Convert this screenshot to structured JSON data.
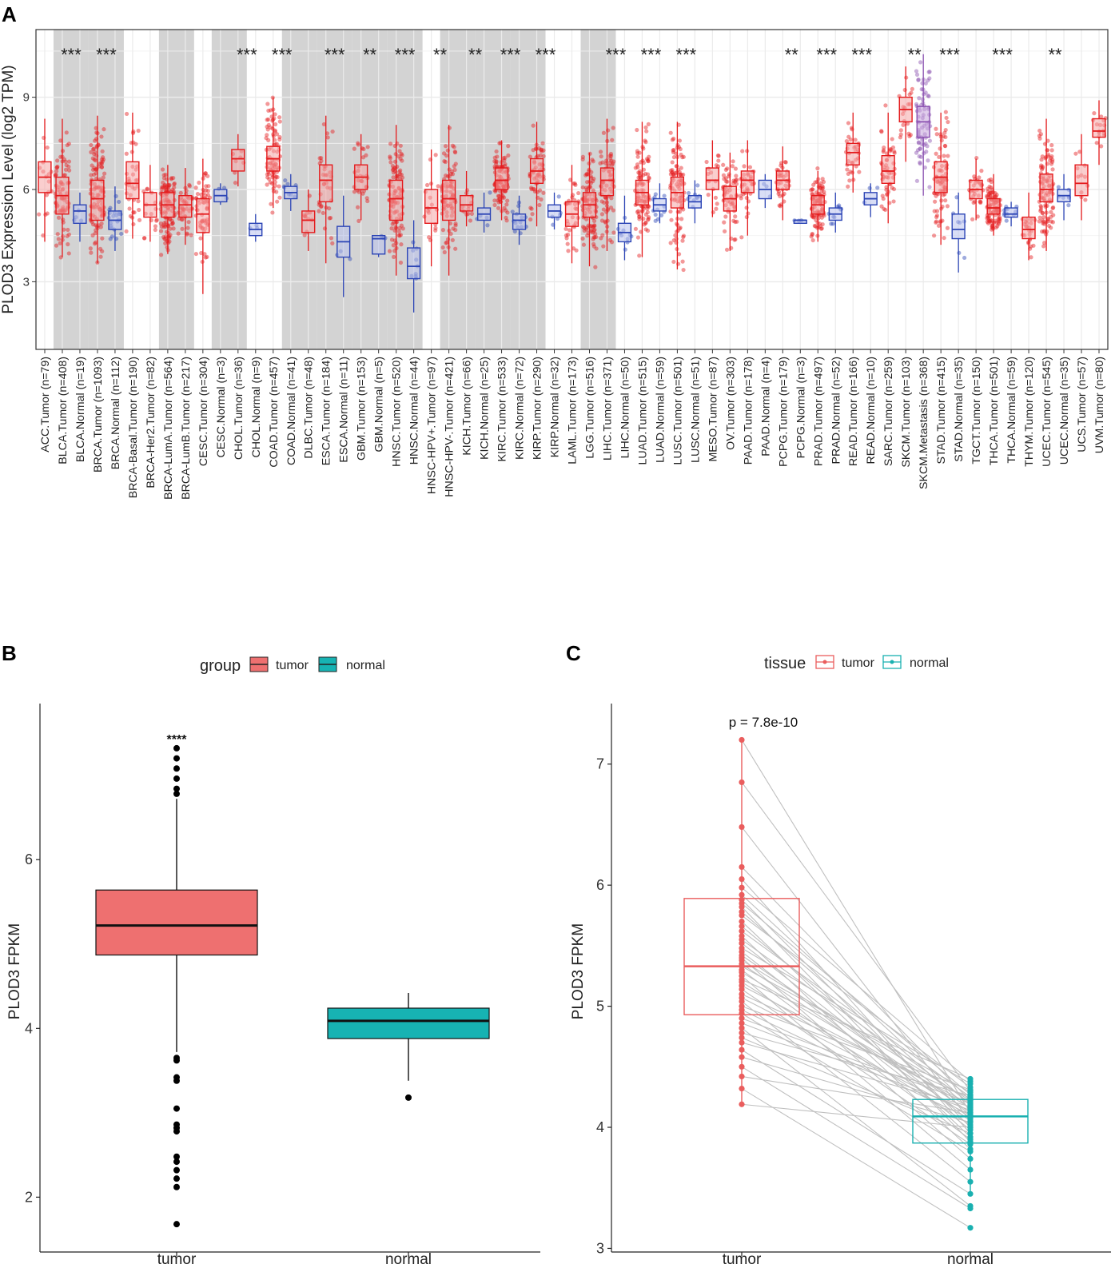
{
  "colors": {
    "tumor_red": "#e41a1c",
    "normal_blue": "#2b44b5",
    "grey_band": "#d3d3d3",
    "b_tumor": "#ee7070",
    "b_normal": "#17b3b3",
    "c_tumor": "#ea5d5d",
    "c_normal": "#19b0b0",
    "pair_line": "#c0c0c0"
  },
  "chart_data": [
    {
      "panel": "A",
      "type": "box",
      "ylabel": "PLOD3 Expression Level (log2 TPM)",
      "yticks": [
        3,
        6,
        9
      ],
      "ylim": [
        0.8,
        11.2
      ],
      "shaded_pairs": [
        1,
        3,
        7,
        10,
        14,
        16,
        18,
        20,
        23,
        25,
        27,
        31
      ],
      "categories": [
        {
          "label": "ACC.Tumor (n=79)",
          "g": "t",
          "q1": 5.9,
          "med": 6.4,
          "q3": 6.9,
          "lo": 4.3,
          "hi": 8.3
        },
        {
          "label": "BLCA.Tumor (n=408)",
          "g": "t",
          "q1": 5.2,
          "med": 5.8,
          "q3": 6.4,
          "lo": 3.8,
          "hi": 8.3
        },
        {
          "label": "BLCA.Normal (n=19)",
          "g": "n",
          "q1": 4.9,
          "med": 5.3,
          "q3": 5.5,
          "lo": 4.3,
          "hi": 5.9
        },
        {
          "label": "BRCA.Tumor (n=1093)",
          "g": "t",
          "q1": 5.0,
          "med": 5.7,
          "q3": 6.3,
          "lo": 3.6,
          "hi": 8.4
        },
        {
          "label": "BRCA.Normal (n=112)",
          "g": "n",
          "q1": 4.7,
          "med": 5.0,
          "q3": 5.3,
          "lo": 4.0,
          "hi": 6.1
        },
        {
          "label": "BRCA-Basal.Tumor (n=190)",
          "g": "t",
          "q1": 5.7,
          "med": 6.2,
          "q3": 6.9,
          "lo": 4.4,
          "hi": 8.5
        },
        {
          "label": "BRCA-Her2.Tumor (n=82)",
          "g": "t",
          "q1": 5.1,
          "med": 5.5,
          "q3": 5.9,
          "lo": 4.3,
          "hi": 6.8
        },
        {
          "label": "BRCA-LumA.Tumor (n=564)",
          "g": "t",
          "q1": 5.1,
          "med": 5.5,
          "q3": 5.9,
          "lo": 3.9,
          "hi": 6.8
        },
        {
          "label": "BRCA-LumB.Tumor (n=217)",
          "g": "t",
          "q1": 5.1,
          "med": 5.5,
          "q3": 5.8,
          "lo": 4.2,
          "hi": 6.7
        },
        {
          "label": "CESC.Tumor (n=304)",
          "g": "t",
          "q1": 4.6,
          "med": 5.2,
          "q3": 5.7,
          "lo": 2.6,
          "hi": 7.0
        },
        {
          "label": "CESC.Normal (n=3)",
          "g": "n",
          "q1": 5.6,
          "med": 5.8,
          "q3": 6.0,
          "lo": 5.5,
          "hi": 6.2
        },
        {
          "label": "CHOL.Tumor (n=36)",
          "g": "t",
          "q1": 6.6,
          "med": 7.0,
          "q3": 7.3,
          "lo": 6.1,
          "hi": 7.8
        },
        {
          "label": "CHOL.Normal (n=9)",
          "g": "n",
          "q1": 4.5,
          "med": 4.7,
          "q3": 4.9,
          "lo": 4.3,
          "hi": 5.2
        },
        {
          "label": "COAD.Tumor (n=457)",
          "g": "t",
          "q1": 6.6,
          "med": 7.0,
          "q3": 7.4,
          "lo": 5.4,
          "hi": 9.0
        },
        {
          "label": "COAD.Normal (n=41)",
          "g": "n",
          "q1": 5.7,
          "med": 5.9,
          "q3": 6.1,
          "lo": 5.3,
          "hi": 6.5
        },
        {
          "label": "DLBC.Tumor (n=48)",
          "g": "t",
          "q1": 4.6,
          "med": 5.0,
          "q3": 5.3,
          "lo": 4.0,
          "hi": 6.0
        },
        {
          "label": "ESCA.Tumor (n=184)",
          "g": "t",
          "q1": 5.6,
          "med": 6.3,
          "q3": 6.8,
          "lo": 3.6,
          "hi": 8.4
        },
        {
          "label": "ESCA.Normal (n=11)",
          "g": "n",
          "q1": 3.8,
          "med": 4.3,
          "q3": 4.8,
          "lo": 2.5,
          "hi": 5.8
        },
        {
          "label": "GBM.Tumor (n=153)",
          "g": "t",
          "q1": 6.0,
          "med": 6.4,
          "q3": 6.8,
          "lo": 5.0,
          "hi": 7.8
        },
        {
          "label": "GBM.Normal (n=5)",
          "g": "n",
          "q1": 3.9,
          "med": 4.4,
          "q3": 4.5,
          "lo": 3.8,
          "hi": 4.5
        },
        {
          "label": "HNSC.Tumor (n=520)",
          "g": "t",
          "q1": 5.0,
          "med": 5.7,
          "q3": 6.3,
          "lo": 3.2,
          "hi": 8.1
        },
        {
          "label": "HNSC.Normal (n=44)",
          "g": "n",
          "q1": 3.1,
          "med": 3.5,
          "q3": 4.1,
          "lo": 2.0,
          "hi": 5.0
        },
        {
          "label": "HNSC-HPV+.Tumor (n=97)",
          "g": "t",
          "q1": 4.9,
          "med": 5.4,
          "q3": 6.0,
          "lo": 3.5,
          "hi": 7.3
        },
        {
          "label": "HNSC-HPV-.Tumor (n=421)",
          "g": "t",
          "q1": 5.0,
          "med": 5.7,
          "q3": 6.3,
          "lo": 3.2,
          "hi": 8.1
        },
        {
          "label": "KICH.Tumor (n=66)",
          "g": "t",
          "q1": 5.3,
          "med": 5.5,
          "q3": 5.8,
          "lo": 4.8,
          "hi": 6.6
        },
        {
          "label": "KICH.Normal (n=25)",
          "g": "n",
          "q1": 5.0,
          "med": 5.2,
          "q3": 5.4,
          "lo": 4.6,
          "hi": 5.9
        },
        {
          "label": "KIRC.Tumor (n=533)",
          "g": "t",
          "q1": 6.0,
          "med": 6.3,
          "q3": 6.7,
          "lo": 5.0,
          "hi": 7.6
        },
        {
          "label": "KIRC.Normal (n=72)",
          "g": "n",
          "q1": 4.7,
          "med": 5.0,
          "q3": 5.2,
          "lo": 4.2,
          "hi": 5.8
        },
        {
          "label": "KIRP.Tumor (n=290)",
          "g": "t",
          "q1": 6.2,
          "med": 6.6,
          "q3": 7.0,
          "lo": 4.8,
          "hi": 8.2
        },
        {
          "label": "KIRP.Normal (n=32)",
          "g": "n",
          "q1": 5.1,
          "med": 5.3,
          "q3": 5.5,
          "lo": 4.7,
          "hi": 5.9
        },
        {
          "label": "LAML.Tumor (n=173)",
          "g": "t",
          "q1": 4.8,
          "med": 5.2,
          "q3": 5.6,
          "lo": 3.6,
          "hi": 6.8
        },
        {
          "label": "LGG.Tumor (n=516)",
          "g": "t",
          "q1": 5.1,
          "med": 5.5,
          "q3": 5.9,
          "lo": 3.5,
          "hi": 7.2
        },
        {
          "label": "LIHC.Tumor (n=371)",
          "g": "t",
          "q1": 5.8,
          "med": 6.3,
          "q3": 6.7,
          "lo": 4.0,
          "hi": 8.3
        },
        {
          "label": "LIHC.Normal (n=50)",
          "g": "n",
          "q1": 4.3,
          "med": 4.6,
          "q3": 4.9,
          "lo": 3.7,
          "hi": 5.8
        },
        {
          "label": "LUAD.Tumor (n=515)",
          "g": "t",
          "q1": 5.5,
          "med": 5.9,
          "q3": 6.3,
          "lo": 3.8,
          "hi": 8.2
        },
        {
          "label": "LUAD.Normal (n=59)",
          "g": "n",
          "q1": 5.3,
          "med": 5.5,
          "q3": 5.7,
          "lo": 4.9,
          "hi": 6.2
        },
        {
          "label": "LUSC.Tumor (n=501)",
          "g": "t",
          "q1": 5.4,
          "med": 5.9,
          "q3": 6.4,
          "lo": 3.4,
          "hi": 8.2
        },
        {
          "label": "LUSC.Normal (n=51)",
          "g": "n",
          "q1": 5.4,
          "med": 5.6,
          "q3": 5.8,
          "lo": 4.9,
          "hi": 6.3
        },
        {
          "label": "MESO.Tumor (n=87)",
          "g": "t",
          "q1": 6.0,
          "med": 6.3,
          "q3": 6.7,
          "lo": 5.1,
          "hi": 7.6
        },
        {
          "label": "OV.Tumor (n=303)",
          "g": "t",
          "q1": 5.3,
          "med": 5.7,
          "q3": 6.1,
          "lo": 4.0,
          "hi": 7.2
        },
        {
          "label": "PAAD.Tumor (n=178)",
          "g": "t",
          "q1": 5.9,
          "med": 6.3,
          "q3": 6.6,
          "lo": 4.5,
          "hi": 7.6
        },
        {
          "label": "PAAD.Normal (n=4)",
          "g": "n",
          "q1": 5.7,
          "med": 6.0,
          "q3": 6.3,
          "lo": 5.4,
          "hi": 6.5
        },
        {
          "label": "PCPG.Tumor (n=179)",
          "g": "t",
          "q1": 6.0,
          "med": 6.3,
          "q3": 6.6,
          "lo": 5.0,
          "hi": 7.4
        },
        {
          "label": "PCPG.Normal (n=3)",
          "g": "n",
          "q1": 4.9,
          "med": 5.0,
          "q3": 5.0,
          "lo": 4.9,
          "hi": 5.0
        },
        {
          "label": "PRAD.Tumor (n=497)",
          "g": "t",
          "q1": 5.2,
          "med": 5.5,
          "q3": 5.8,
          "lo": 4.3,
          "hi": 6.6
        },
        {
          "label": "PRAD.Normal (n=52)",
          "g": "n",
          "q1": 5.0,
          "med": 5.2,
          "q3": 5.4,
          "lo": 4.6,
          "hi": 5.9
        },
        {
          "label": "READ.Tumor (n=166)",
          "g": "t",
          "q1": 6.8,
          "med": 7.2,
          "q3": 7.5,
          "lo": 5.9,
          "hi": 8.5
        },
        {
          "label": "READ.Normal (n=10)",
          "g": "n",
          "q1": 5.5,
          "med": 5.7,
          "q3": 5.9,
          "lo": 5.1,
          "hi": 6.2
        },
        {
          "label": "SARC.Tumor (n=259)",
          "g": "t",
          "q1": 6.2,
          "med": 6.6,
          "q3": 7.1,
          "lo": 4.9,
          "hi": 8.5
        },
        {
          "label": "SKCM.Tumor (n=103)",
          "g": "t",
          "q1": 8.2,
          "med": 8.6,
          "q3": 9.0,
          "lo": 6.9,
          "hi": 10.0
        },
        {
          "label": "SKCM.Metastasis (n=368)",
          "g": "m",
          "q1": 7.7,
          "med": 8.2,
          "q3": 8.7,
          "lo": 5.8,
          "hi": 10.4
        },
        {
          "label": "STAD.Tumor (n=415)",
          "g": "t",
          "q1": 5.9,
          "med": 6.4,
          "q3": 6.9,
          "lo": 4.2,
          "hi": 8.5
        },
        {
          "label": "STAD.Normal (n=35)",
          "g": "n",
          "q1": 4.4,
          "med": 4.7,
          "q3": 5.2,
          "lo": 3.3,
          "hi": 5.9
        },
        {
          "label": "TGCT.Tumor (n=150)",
          "g": "t",
          "q1": 5.7,
          "med": 6.0,
          "q3": 6.3,
          "lo": 5.0,
          "hi": 7.0
        },
        {
          "label": "THCA.Tumor (n=501)",
          "g": "t",
          "q1": 5.2,
          "med": 5.4,
          "q3": 5.7,
          "lo": 4.5,
          "hi": 6.5
        },
        {
          "label": "THCA.Normal (n=59)",
          "g": "n",
          "q1": 5.1,
          "med": 5.2,
          "q3": 5.4,
          "lo": 4.8,
          "hi": 5.6
        },
        {
          "label": "THYM.Tumor (n=120)",
          "g": "t",
          "q1": 4.4,
          "med": 4.7,
          "q3": 5.1,
          "lo": 3.7,
          "hi": 5.9
        },
        {
          "label": "UCEC.Tumor (n=545)",
          "g": "t",
          "q1": 5.6,
          "med": 6.0,
          "q3": 6.5,
          "lo": 4.0,
          "hi": 8.3
        },
        {
          "label": "UCEC.Normal (n=35)",
          "g": "n",
          "q1": 5.6,
          "med": 5.8,
          "q3": 6.0,
          "lo": 5.0,
          "hi": 6.5
        },
        {
          "label": "UCS.Tumor (n=57)",
          "g": "t",
          "q1": 5.8,
          "med": 6.2,
          "q3": 6.8,
          "lo": 5.0,
          "hi": 7.8
        },
        {
          "label": "UVM.Tumor (n=80)",
          "g": "t",
          "q1": 7.7,
          "med": 7.9,
          "q3": 8.3,
          "lo": 6.8,
          "hi": 8.9
        }
      ],
      "significance": [
        {
          "idx": 1,
          "stars": "***"
        },
        {
          "idx": 3,
          "stars": "***"
        },
        {
          "idx": 11,
          "stars": "***"
        },
        {
          "idx": 13,
          "stars": "***"
        },
        {
          "idx": 16,
          "stars": "***"
        },
        {
          "idx": 18,
          "stars": "**"
        },
        {
          "idx": 20,
          "stars": "***"
        },
        {
          "idx": 22,
          "stars": "**"
        },
        {
          "idx": 24,
          "stars": "**"
        },
        {
          "idx": 26,
          "stars": "***"
        },
        {
          "idx": 28,
          "stars": "***"
        },
        {
          "idx": 32,
          "stars": "***"
        },
        {
          "idx": 34,
          "stars": "***"
        },
        {
          "idx": 36,
          "stars": "***"
        },
        {
          "idx": 42,
          "stars": "**"
        },
        {
          "idx": 44,
          "stars": "***"
        },
        {
          "idx": 46,
          "stars": "***"
        },
        {
          "idx": 49,
          "stars": "**"
        },
        {
          "idx": 51,
          "stars": "***"
        },
        {
          "idx": 54,
          "stars": "***"
        },
        {
          "idx": 57,
          "stars": "**"
        }
      ]
    },
    {
      "panel": "B",
      "type": "box",
      "ylabel": "PLOD3 FPKM",
      "legend_title": "group",
      "legend": [
        "tumor",
        "normal"
      ],
      "categories": [
        "tumor",
        "normal"
      ],
      "yticks": [
        2,
        4,
        6
      ],
      "ylim": [
        1.35,
        7.85
      ],
      "boxes": [
        {
          "name": "tumor",
          "q1": 4.87,
          "med": 5.22,
          "q3": 5.64,
          "lo": 3.72,
          "hi": 6.72,
          "outliers_high": [
            7.32,
            7.2,
            7.08,
            6.96,
            6.84,
            6.78
          ],
          "outliers_low": [
            3.65,
            3.62,
            3.42,
            3.38,
            3.05,
            2.86,
            2.82,
            2.78,
            2.48,
            2.42,
            2.32,
            2.22,
            2.12,
            1.68
          ]
        },
        {
          "name": "normal",
          "q1": 3.88,
          "med": 4.09,
          "q3": 4.24,
          "lo": 3.38,
          "hi": 4.42,
          "outliers_high": [],
          "outliers_low": [
            3.18
          ]
        }
      ],
      "annotation": "****"
    },
    {
      "panel": "C",
      "type": "paired_box",
      "ylabel": "PLOD3 FPKM",
      "legend_title": "tissue",
      "legend": [
        "tumor",
        "normal"
      ],
      "categories": [
        "tumor",
        "normal"
      ],
      "yticks": [
        3,
        4,
        5,
        6,
        7
      ],
      "ylim": [
        2.97,
        7.5
      ],
      "pvalue": "p = 7.8e-10",
      "boxes": [
        {
          "name": "tumor",
          "q1": 4.93,
          "med": 5.33,
          "q3": 5.89,
          "lo": 4.19,
          "hi": 7.2
        },
        {
          "name": "normal",
          "q1": 3.87,
          "med": 4.09,
          "q3": 4.23,
          "lo": 3.45,
          "hi": 4.42
        }
      ],
      "pairs": [
        [
          7.2,
          4.12
        ],
        [
          6.85,
          4.3
        ],
        [
          6.48,
          4.05
        ],
        [
          6.15,
          4.22
        ],
        [
          6.05,
          3.95
        ],
        [
          5.98,
          4.38
        ],
        [
          5.92,
          4.18
        ],
        [
          5.88,
          4.0
        ],
        [
          5.85,
          4.27
        ],
        [
          5.82,
          3.88
        ],
        [
          5.78,
          4.15
        ],
        [
          5.75,
          4.33
        ],
        [
          5.7,
          3.92
        ],
        [
          5.66,
          4.1
        ],
        [
          5.62,
          4.25
        ],
        [
          5.58,
          3.82
        ],
        [
          5.55,
          4.2
        ],
        [
          5.52,
          4.05
        ],
        [
          5.48,
          4.36
        ],
        [
          5.45,
          3.98
        ],
        [
          5.42,
          4.12
        ],
        [
          5.4,
          3.74
        ],
        [
          5.38,
          4.22
        ],
        [
          5.35,
          4.08
        ],
        [
          5.33,
          4.29
        ],
        [
          5.3,
          3.9
        ],
        [
          5.28,
          4.16
        ],
        [
          5.25,
          3.65
        ],
        [
          5.22,
          4.4
        ],
        [
          5.2,
          4.02
        ],
        [
          5.17,
          4.19
        ],
        [
          5.14,
          3.86
        ],
        [
          5.1,
          4.24
        ],
        [
          5.07,
          4.1
        ],
        [
          5.04,
          3.55
        ],
        [
          5.0,
          4.31
        ],
        [
          4.97,
          4.07
        ],
        [
          4.94,
          3.8
        ],
        [
          4.9,
          4.2
        ],
        [
          4.86,
          4.14
        ],
        [
          4.82,
          3.35
        ],
        [
          4.78,
          4.26
        ],
        [
          4.74,
          3.95
        ],
        [
          4.7,
          4.17
        ],
        [
          4.64,
          3.45
        ],
        [
          4.58,
          4.04
        ],
        [
          4.5,
          3.33
        ],
        [
          4.42,
          4.12
        ],
        [
          4.32,
          3.17
        ],
        [
          4.19,
          4.0
        ]
      ]
    }
  ],
  "panels": {
    "a_label": "A",
    "b_label": "B",
    "c_label": "C"
  }
}
